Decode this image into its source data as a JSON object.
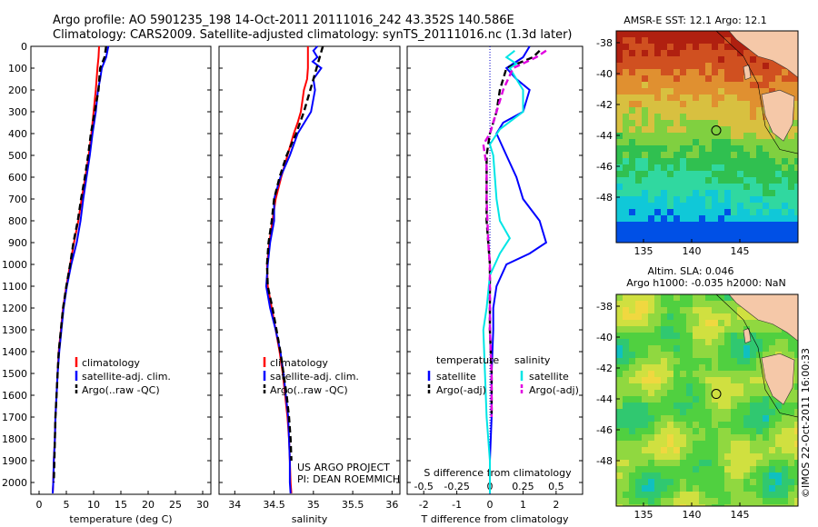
{
  "header": {
    "title_line1": "Argo profile: AO 5901235_198 14-Oct-2011 20111016_242 43.352S 140.586E",
    "title_line2": "Climatology: CARS2009. Satellite-adjusted climatology: synTS_20111016.nc (1.3d later)"
  },
  "colors": {
    "climatology": "#ff0000",
    "satellite": "#0000ff",
    "argo": "#000000",
    "sat_salinity": "#00e5e5",
    "argo_salinity": "#e000e0"
  },
  "chart_data": [
    {
      "type": "line",
      "panel": "temperature",
      "xlabel": "temperature (deg C)",
      "xlim": [
        -1.5,
        31.5
      ],
      "ylim": [
        2080,
        0
      ],
      "xticks": [
        "0",
        "5",
        "10",
        "15",
        "20",
        "25",
        "30"
      ],
      "xtick_values": [
        0,
        5,
        10,
        15,
        20,
        25,
        30
      ],
      "yticks": [
        0,
        100,
        200,
        300,
        400,
        500,
        600,
        700,
        800,
        900,
        1000,
        1100,
        1200,
        1300,
        1400,
        1500,
        1600,
        1700,
        1800,
        1900,
        2000
      ],
      "legend": [
        "climatology",
        "satellite-adj. clim.",
        "Argo(..raw -QC)"
      ],
      "series": [
        {
          "name": "climatology",
          "color": "climatology",
          "dash": false,
          "points": [
            [
              11.0,
              0
            ],
            [
              10.9,
              50
            ],
            [
              10.7,
              100
            ],
            [
              10.4,
              200
            ],
            [
              10.0,
              300
            ],
            [
              9.6,
              400
            ],
            [
              9.1,
              500
            ],
            [
              8.5,
              600
            ],
            [
              7.8,
              700
            ],
            [
              7.2,
              800
            ],
            [
              6.4,
              900
            ],
            [
              5.7,
              1000
            ],
            [
              5.0,
              1100
            ],
            [
              4.4,
              1200
            ],
            [
              4.0,
              1300
            ],
            [
              3.6,
              1400
            ],
            [
              3.4,
              1500
            ],
            [
              3.2,
              1600
            ],
            [
              3.0,
              1700
            ],
            [
              2.9,
              1800
            ],
            [
              2.7,
              1900
            ],
            [
              2.6,
              2000
            ],
            [
              2.5,
              2050
            ]
          ]
        },
        {
          "name": "satellite-adj. clim.",
          "color": "satellite",
          "dash": false,
          "points": [
            [
              12.7,
              0
            ],
            [
              12.3,
              50
            ],
            [
              11.5,
              100
            ],
            [
              11.2,
              150
            ],
            [
              10.8,
              200
            ],
            [
              10.4,
              300
            ],
            [
              9.8,
              400
            ],
            [
              9.3,
              500
            ],
            [
              8.7,
              600
            ],
            [
              8.1,
              700
            ],
            [
              7.6,
              800
            ],
            [
              6.9,
              900
            ],
            [
              5.9,
              1000
            ],
            [
              5.1,
              1100
            ],
            [
              4.5,
              1200
            ],
            [
              4.1,
              1300
            ],
            [
              3.7,
              1400
            ],
            [
              3.4,
              1500
            ],
            [
              3.2,
              1600
            ],
            [
              3.0,
              1700
            ],
            [
              2.9,
              1800
            ],
            [
              2.7,
              1900
            ],
            [
              2.6,
              2000
            ],
            [
              2.5,
              2050
            ]
          ]
        },
        {
          "name": "Argo(..raw -QC)",
          "color": "argo",
          "dash": true,
          "points": [
            [
              12.3,
              0
            ],
            [
              12.0,
              50
            ],
            [
              11.2,
              100
            ],
            [
              10.9,
              200
            ],
            [
              10.2,
              300
            ],
            [
              9.5,
              400
            ],
            [
              9.0,
              500
            ],
            [
              8.4,
              600
            ],
            [
              7.7,
              700
            ],
            [
              7.1,
              800
            ],
            [
              6.3,
              900
            ],
            [
              5.7,
              1000
            ],
            [
              5.0,
              1100
            ],
            [
              4.4,
              1200
            ],
            [
              4.0,
              1300
            ],
            [
              3.6,
              1400
            ],
            [
              3.4,
              1500
            ],
            [
              3.2,
              1600
            ],
            [
              3.0,
              1700
            ],
            [
              2.9,
              1800
            ],
            [
              2.8,
              1900
            ],
            [
              2.7,
              2000
            ]
          ]
        }
      ]
    },
    {
      "type": "line",
      "panel": "salinity",
      "xlabel": "salinity",
      "xlim": [
        33.8,
        36.1
      ],
      "ylim": [
        2080,
        0
      ],
      "xticks": [
        "34",
        "34.5",
        "35",
        "35.5",
        "36"
      ],
      "xtick_values": [
        34,
        34.5,
        35,
        35.5,
        36
      ],
      "legend": [
        "climatology",
        "satellite-adj. clim.",
        "Argo(..raw -QC)"
      ],
      "series": [
        {
          "name": "climatology",
          "color": "climatology",
          "dash": false,
          "points": [
            [
              34.93,
              0
            ],
            [
              34.93,
              100
            ],
            [
              34.92,
              150
            ],
            [
              34.88,
              200
            ],
            [
              34.84,
              300
            ],
            [
              34.8,
              350
            ],
            [
              34.75,
              400
            ],
            [
              34.67,
              500
            ],
            [
              34.59,
              600
            ],
            [
              34.52,
              700
            ],
            [
              34.48,
              800
            ],
            [
              34.44,
              900
            ],
            [
              34.41,
              1000
            ],
            [
              34.42,
              1100
            ],
            [
              34.47,
              1200
            ],
            [
              34.52,
              1300
            ],
            [
              34.57,
              1400
            ],
            [
              34.61,
              1500
            ],
            [
              34.64,
              1600
            ],
            [
              34.67,
              1700
            ],
            [
              34.69,
              1800
            ],
            [
              34.7,
              1900
            ],
            [
              34.71,
              2000
            ],
            [
              34.72,
              2050
            ]
          ]
        },
        {
          "name": "satellite-adj. clim.",
          "color": "satellite",
          "dash": false,
          "points": [
            [
              35.05,
              0
            ],
            [
              35.0,
              20
            ],
            [
              35.05,
              50
            ],
            [
              34.99,
              70
            ],
            [
              35.1,
              100
            ],
            [
              35.0,
              150
            ],
            [
              35.02,
              200
            ],
            [
              34.97,
              300
            ],
            [
              34.8,
              400
            ],
            [
              34.7,
              500
            ],
            [
              34.58,
              600
            ],
            [
              34.5,
              700
            ],
            [
              34.5,
              800
            ],
            [
              34.45,
              900
            ],
            [
              34.42,
              1000
            ],
            [
              34.4,
              1100
            ],
            [
              34.45,
              1200
            ],
            [
              34.52,
              1300
            ],
            [
              34.58,
              1400
            ],
            [
              34.62,
              1500
            ],
            [
              34.65,
              1600
            ],
            [
              34.68,
              1700
            ],
            [
              34.69,
              1800
            ],
            [
              34.7,
              1900
            ],
            [
              34.7,
              2000
            ],
            [
              34.71,
              2050
            ]
          ]
        },
        {
          "name": "Argo(..raw -QC)",
          "color": "argo",
          "dash": true,
          "points": [
            [
              35.12,
              0
            ],
            [
              35.08,
              50
            ],
            [
              35.04,
              100
            ],
            [
              34.96,
              200
            ],
            [
              34.88,
              300
            ],
            [
              34.78,
              400
            ],
            [
              34.66,
              500
            ],
            [
              34.57,
              600
            ],
            [
              34.5,
              700
            ],
            [
              34.47,
              800
            ],
            [
              34.43,
              900
            ],
            [
              34.41,
              1000
            ],
            [
              34.42,
              1100
            ],
            [
              34.48,
              1200
            ],
            [
              34.53,
              1300
            ],
            [
              34.58,
              1400
            ],
            [
              34.62,
              1500
            ],
            [
              34.66,
              1600
            ],
            [
              34.69,
              1700
            ],
            [
              34.71,
              1800
            ],
            [
              34.72,
              1900
            ]
          ]
        }
      ],
      "annotations": [
        "US ARGO PROJECT",
        "PI: DEAN ROEMMICH"
      ]
    },
    {
      "type": "line",
      "panel": "difference",
      "xlabel": "T difference from climatology",
      "xlabel_top": "S difference from climatology",
      "xlim": [
        -2.5,
        2.8
      ],
      "ylim": [
        2080,
        0
      ],
      "xticks": [
        "-2",
        "-1",
        "0",
        "1",
        "2"
      ],
      "xtick_values": [
        -2,
        -1,
        0,
        1,
        2
      ],
      "s_xticks": [
        "-0.5",
        "-0.25",
        "0",
        "0.25",
        "0.5"
      ],
      "s_xtick_t_values": [
        -2,
        -1,
        0,
        1,
        2
      ],
      "legend_temperature": {
        "title": "temperature",
        "items": [
          "satellite",
          "Argo(-adj)"
        ]
      },
      "legend_salinity": {
        "title": "salinity",
        "items": [
          "satellite",
          "Argo(-adj)"
        ]
      },
      "series": [
        {
          "name": "satellite",
          "color": "satellite",
          "dash": false,
          "points": [
            [
              1.2,
              0
            ],
            [
              1.0,
              50
            ],
            [
              0.5,
              100
            ],
            [
              0.8,
              150
            ],
            [
              1.2,
              200
            ],
            [
              1.0,
              300
            ],
            [
              0.4,
              350
            ],
            [
              0.2,
              400
            ],
            [
              0.5,
              500
            ],
            [
              0.8,
              600
            ],
            [
              1.0,
              700
            ],
            [
              1.5,
              800
            ],
            [
              1.7,
              900
            ],
            [
              1.2,
              950
            ],
            [
              0.5,
              1000
            ],
            [
              0.2,
              1100
            ],
            [
              0.1,
              1200
            ],
            [
              0.1,
              1300
            ],
            [
              0.05,
              1500
            ],
            [
              0.05,
              1700
            ],
            [
              0.0,
              1900
            ],
            [
              0.0,
              2050
            ]
          ]
        },
        {
          "name": "Argo(-adj)",
          "color": "argo",
          "dash": true,
          "points": [
            [
              1.5,
              20
            ],
            [
              1.3,
              50
            ],
            [
              0.5,
              100
            ],
            [
              0.3,
              200
            ],
            [
              0.2,
              300
            ],
            [
              0.0,
              400
            ],
            [
              -0.1,
              500
            ],
            [
              -0.1,
              600
            ],
            [
              -0.1,
              700
            ],
            [
              -0.1,
              800
            ],
            [
              -0.05,
              900
            ],
            [
              0.0,
              1000
            ],
            [
              0.0,
              1100
            ],
            [
              0.0,
              1300
            ],
            [
              0.05,
              1500
            ],
            [
              0.05,
              1700
            ]
          ]
        },
        {
          "name": "satellite",
          "color": "sat_salinity",
          "dash": false,
          "points": [
            [
              0.75,
              20
            ],
            [
              0.5,
              50
            ],
            [
              0.8,
              80
            ],
            [
              0.6,
              100
            ],
            [
              1.0,
              200
            ],
            [
              1.0,
              300
            ],
            [
              0.3,
              380
            ],
            [
              0.0,
              450
            ],
            [
              0.1,
              500
            ],
            [
              0.2,
              700
            ],
            [
              0.3,
              800
            ],
            [
              0.6,
              880
            ],
            [
              0.3,
              950
            ],
            [
              0.0,
              1050
            ],
            [
              -0.1,
              1200
            ],
            [
              -0.2,
              1300
            ],
            [
              -0.15,
              1500
            ],
            [
              -0.1,
              1700
            ],
            [
              0.0,
              1900
            ],
            [
              0.0,
              2050
            ]
          ]
        },
        {
          "name": "Argo(-adj)",
          "color": "argo_salinity",
          "dash": true,
          "points": [
            [
              1.7,
              20
            ],
            [
              1.4,
              50
            ],
            [
              0.7,
              100
            ],
            [
              0.4,
              200
            ],
            [
              0.2,
              300
            ],
            [
              0.0,
              400
            ],
            [
              -0.2,
              450
            ],
            [
              -0.1,
              550
            ],
            [
              -0.1,
              700
            ],
            [
              -0.05,
              900
            ],
            [
              0.0,
              1000
            ],
            [
              0.0,
              1300
            ],
            [
              0.05,
              1500
            ],
            [
              0.05,
              1700
            ]
          ]
        }
      ]
    }
  ],
  "maps": {
    "sst": {
      "title": "AMSR-E SST: 12.1 Argo: 12.1",
      "yticks": [
        "-38",
        "-40",
        "-42",
        "-44",
        "-46",
        "-48"
      ],
      "xticks": [
        "135",
        "140",
        "145"
      ],
      "palette": [
        "#0050e6",
        "#10c8d8",
        "#30d8a0",
        "#30c050",
        "#80d040",
        "#d8c040",
        "#e09030",
        "#d05020",
        "#b02010"
      ]
    },
    "sla": {
      "title_line1": "Altim. SLA: 0.046",
      "title_line2": "Argo h1000: -0.035 h2000: NaN",
      "yticks": [
        "-38",
        "-40",
        "-42",
        "-44",
        "-46",
        "-48"
      ],
      "xticks": [
        "135",
        "140",
        "145"
      ],
      "palette": [
        "#10c0c0",
        "#30c870",
        "#50d040",
        "#90d840",
        "#d0e040",
        "#f0d840",
        "#f0b040"
      ]
    },
    "land_color": "#f5c8a8",
    "side_label": "©IMOS 22-Oct-2011 16:00:33"
  }
}
